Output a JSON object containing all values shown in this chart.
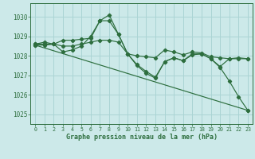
{
  "background_color": "#cce9e9",
  "grid_color": "#aad4d4",
  "line_color": "#2d6e3e",
  "xlabel": "Graphe pression niveau de la mer (hPa)",
  "xlim": [
    -0.5,
    23.5
  ],
  "ylim": [
    1024.5,
    1030.7
  ],
  "yticks": [
    1025,
    1026,
    1027,
    1028,
    1029,
    1030
  ],
  "xticks": [
    0,
    1,
    2,
    3,
    4,
    5,
    6,
    7,
    8,
    9,
    10,
    11,
    12,
    13,
    14,
    15,
    16,
    17,
    18,
    19,
    20,
    21,
    22,
    23
  ],
  "series": [
    {
      "x": [
        0,
        1,
        2,
        3,
        4,
        5,
        6,
        7,
        8,
        9,
        10,
        11,
        12,
        13,
        14,
        15,
        16,
        17,
        18,
        19,
        20,
        21,
        22,
        23
      ],
      "y": [
        1028.6,
        1028.7,
        1028.6,
        1028.2,
        1028.3,
        1028.5,
        1029.0,
        1029.8,
        1030.1,
        1029.1,
        1028.1,
        1027.5,
        1027.1,
        1026.85,
        1027.7,
        1027.9,
        1027.75,
        1028.1,
        1028.1,
        1027.85,
        1027.4,
        1026.7,
        1025.9,
        1025.2
      ]
    },
    {
      "x": [
        0,
        1,
        2,
        3,
        4,
        5,
        6,
        7,
        8,
        9,
        10,
        11,
        12,
        13,
        14,
        15,
        16,
        17,
        18,
        19,
        20,
        21,
        22,
        23
      ],
      "y": [
        1028.6,
        1028.6,
        1028.6,
        1028.5,
        1028.5,
        1028.6,
        1028.7,
        1028.8,
        1028.8,
        1028.7,
        1028.1,
        1028.0,
        1027.95,
        1027.9,
        1028.3,
        1028.2,
        1028.05,
        1028.2,
        1028.15,
        1027.95,
        1027.9,
        1027.85,
        1027.85,
        1027.85
      ]
    },
    {
      "x": [
        0,
        1,
        2,
        3,
        4,
        5,
        6,
        7,
        8,
        9,
        10,
        11,
        12,
        13,
        14,
        15,
        16,
        17,
        18,
        19,
        20,
        21,
        22,
        23
      ],
      "y": [
        1028.55,
        1028.55,
        1028.6,
        1028.8,
        1028.8,
        1028.85,
        1028.9,
        1029.8,
        1029.8,
        1029.1,
        1028.1,
        1027.55,
        1027.2,
        1026.9,
        1027.7,
        1027.9,
        1027.75,
        1028.05,
        1028.1,
        1027.85,
        1027.45,
        1027.85,
        1027.9,
        1027.85
      ]
    },
    {
      "x": [
        0,
        23
      ],
      "y": [
        1028.55,
        1025.2
      ]
    }
  ]
}
